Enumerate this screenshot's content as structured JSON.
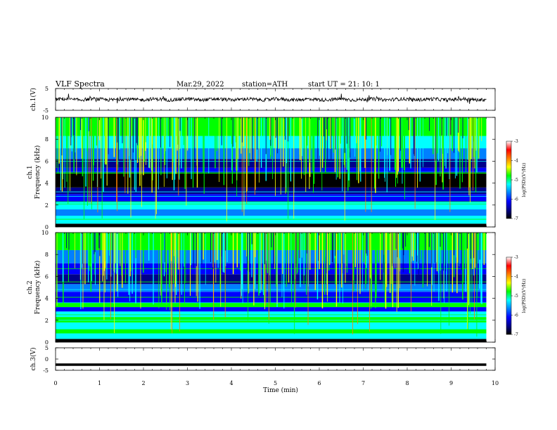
{
  "header": {
    "title": "VLF  Spectra",
    "date": "Mar.29, 2022",
    "station": "station=ATH",
    "start": "start  UT  =   21: 10: 1"
  },
  "chart_data": [
    {
      "type": "line",
      "name": "ch1-waveform",
      "ylabel": "ch.1(V)",
      "ylim": [
        -5,
        5
      ],
      "yticks": [
        "5",
        "-5"
      ],
      "xlim": [
        0,
        10
      ],
      "note_values": "noisy trace centered near 0 V with small spikes",
      "baseline": 0,
      "x_end": 9.8
    },
    {
      "type": "heatmap",
      "name": "ch1-spectrogram",
      "ylabel": "ch.1\nFrequency  (kHz)",
      "ylim": [
        0,
        10
      ],
      "yticks": [
        "0",
        "2",
        "4",
        "6",
        "8",
        "10"
      ],
      "xlim": [
        0,
        10
      ],
      "x_end": 9.8,
      "colorbar": {
        "label": "log(PSD)(V²/Hz)",
        "range": [
          -7,
          -3
        ],
        "ticks": [
          "-3",
          "-4",
          "-5",
          "-6",
          "-7"
        ]
      }
    },
    {
      "type": "heatmap",
      "name": "ch2-spectrogram",
      "ylabel": "ch.2\nFrequency  (kHz)",
      "ylim": [
        0,
        10
      ],
      "yticks": [
        "0",
        "2",
        "4",
        "6",
        "8",
        "10"
      ],
      "xlim": [
        0,
        10
      ],
      "x_end": 9.8,
      "colorbar": {
        "label": "log(PSD)(V²/Hz)",
        "range": [
          -7,
          -3
        ],
        "ticks": [
          "-3",
          "-4",
          "-5",
          "-6",
          "-7"
        ]
      }
    },
    {
      "type": "line",
      "name": "ch3-waveform",
      "ylabel": "ch.3(V)",
      "ylim": [
        -5,
        5
      ],
      "yticks": [
        "5",
        "0",
        "-5"
      ],
      "xlim": [
        0,
        10
      ],
      "xlabel": "Time  (min)",
      "xticks": [
        "0",
        "1",
        "2",
        "3",
        "4",
        "5",
        "6",
        "7",
        "8",
        "9",
        "10"
      ],
      "constant_value": -2.5,
      "x_end": 9.8
    }
  ],
  "colors": {
    "axis": "#000000",
    "trace": "#000000",
    "colormap": [
      "#000000",
      "#00008b",
      "#0000ff",
      "#0080ff",
      "#00ffff",
      "#00ff00",
      "#ffff00",
      "#ff8000",
      "#ff0000",
      "#ffffff"
    ]
  }
}
